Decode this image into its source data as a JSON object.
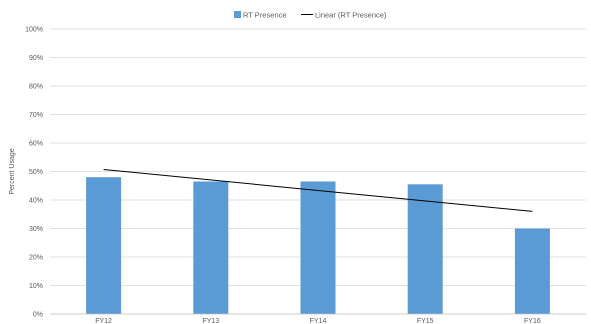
{
  "chart_data": {
    "type": "bar",
    "categories": [
      "FY12",
      "FY13",
      "FY14",
      "FY15",
      "FY16"
    ],
    "series": [
      {
        "name": "RT Presence",
        "values": [
          48,
          46.5,
          46.5,
          45.5,
          30
        ]
      }
    ],
    "trendline": {
      "name": "Linear (RT Presence)",
      "start": 50.7,
      "end": 36
    },
    "title": "",
    "xlabel": "",
    "ylabel": "Percent Usage",
    "ylim": [
      0,
      100
    ],
    "yticks": [
      "0%",
      "10%",
      "20%",
      "30%",
      "40%",
      "50%",
      "60%",
      "70%",
      "80%",
      "90%",
      "100%"
    ],
    "grid": true,
    "legend_position": "top",
    "colors": {
      "bar": "#5b9bd5",
      "trendline": "#000000",
      "grid": "#d9d9d9"
    }
  }
}
